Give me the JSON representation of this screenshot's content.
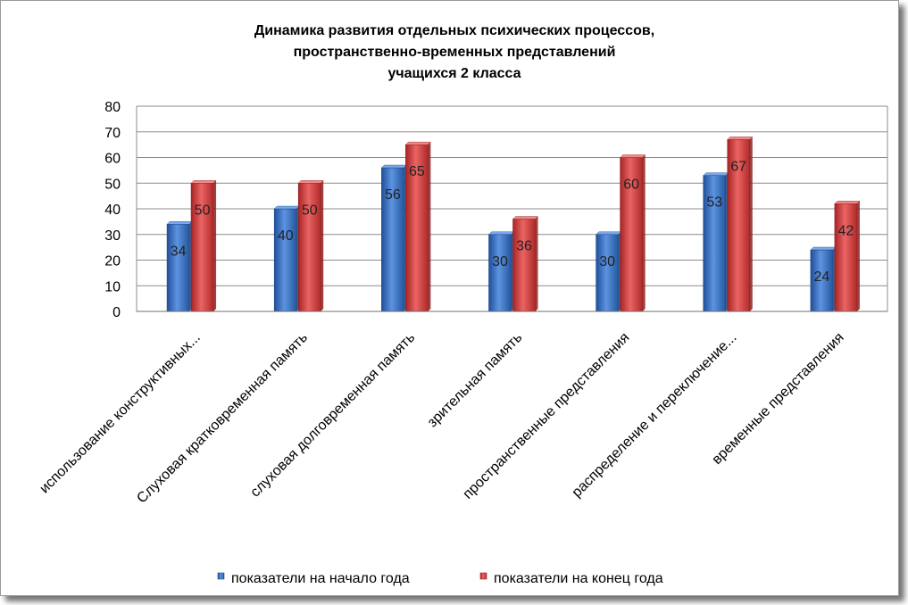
{
  "chart_data": {
    "type": "bar",
    "title": [
      "Динамика развития отдельных психических процессов,",
      "пространственно-временных представлений",
      "учащихся  2  класса"
    ],
    "categories": [
      "использование конструктивных...",
      "Слуховая кратковременная память",
      "слуховая долговременная память",
      "зрительная память",
      "пространственные представления",
      "распределение и переключение...",
      "временные представления"
    ],
    "series": [
      {
        "name": "показатели на начало года",
        "color": "#2e6bc4",
        "values": [
          34,
          40,
          56,
          30,
          30,
          53,
          24
        ]
      },
      {
        "name": "показатели на конец года",
        "color": "#d23a3a",
        "values": [
          50,
          50,
          65,
          36,
          60,
          67,
          42
        ]
      }
    ],
    "ylim": [
      0,
      80
    ],
    "yticks": [
      0,
      10,
      20,
      30,
      40,
      50,
      60,
      70,
      80
    ],
    "grid": true,
    "data_labels": true,
    "legend_position": "bottom"
  }
}
